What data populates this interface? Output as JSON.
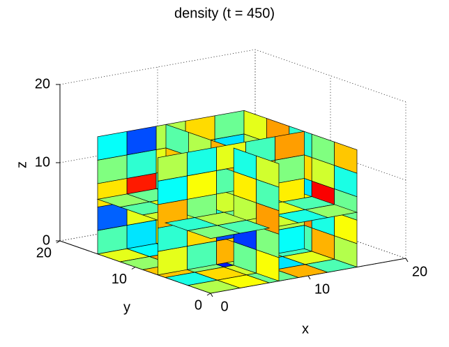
{
  "chart_data": {
    "type": "slice3d",
    "title": "density (t = 450)",
    "x_label": "x",
    "y_label": "y",
    "z_label": "z",
    "xlim": [
      0,
      20
    ],
    "ylim": [
      0,
      20
    ],
    "zlim": [
      0,
      20
    ],
    "xticks": [
      0,
      10,
      20
    ],
    "yticks": [
      0,
      10,
      20
    ],
    "zticks": [
      0,
      10,
      20
    ],
    "grid": true,
    "colormap": "jet",
    "clim": [
      0,
      1
    ],
    "slices": [
      {
        "axis": "z",
        "at": 0,
        "values": [
          [
            0.55,
            0.62,
            0.48,
            0.7,
            0.45
          ],
          [
            0.4,
            0.66,
            0.58,
            0.35,
            0.6
          ],
          [
            0.68,
            0.5,
            0.15,
            0.62,
            0.44
          ],
          [
            0.52,
            0.72,
            0.47,
            0.58,
            0.66
          ],
          [
            0.6,
            0.38,
            0.7,
            0.5,
            0.55
          ]
        ]
      },
      {
        "axis": "y",
        "at": 15,
        "values": [
          [
            0.45,
            0.35,
            0.62,
            0.55,
            0.4
          ],
          [
            0.22,
            0.6,
            0.5,
            0.68,
            0.58
          ],
          [
            0.65,
            0.85,
            0.45,
            0.38,
            0.7
          ],
          [
            0.5,
            0.42,
            0.6,
            0.55,
            0.35
          ],
          [
            0.38,
            0.2,
            0.55,
            0.66,
            0.48
          ]
        ]
      },
      {
        "axis": "x",
        "at": 15,
        "values": [
          [
            0.55,
            0.7,
            0.45,
            0.6,
            0.38
          ],
          [
            0.62,
            0.4,
            0.74,
            0.5,
            0.66
          ],
          [
            0.48,
            0.88,
            0.35,
            0.62,
            0.7
          ],
          [
            0.4,
            0.58,
            0.66,
            0.3,
            0.55
          ],
          [
            0.68,
            0.5,
            0.42,
            0.72,
            0.6
          ]
        ]
      },
      {
        "axis": "z",
        "at": 7,
        "values": [
          [
            0.5,
            0.45,
            0.58,
            0.4,
            0.52
          ],
          [
            0.42,
            0.55,
            0.48,
            0.6,
            0.45
          ],
          [
            0.58,
            0.4,
            0.5,
            0.46,
            0.62
          ],
          [
            0.46,
            0.6,
            0.44,
            0.56,
            0.4
          ],
          [
            0.52,
            0.48,
            0.62,
            0.42,
            0.5
          ]
        ]
      },
      {
        "axis": "y",
        "at": 7,
        "values": [
          [
            0.6,
            0.45,
            0.7,
            0.5,
            0.38
          ],
          [
            0.42,
            0.66,
            0.2,
            0.62,
            0.55
          ],
          [
            0.7,
            0.5,
            0.58,
            0.4,
            0.64
          ],
          [
            0.38,
            0.62,
            0.46,
            0.68,
            0.5
          ],
          [
            0.55,
            0.4,
            0.6,
            0.44,
            0.72
          ]
        ]
      },
      {
        "axis": "x",
        "at": 7,
        "values": [
          [
            0.62,
            0.48,
            0.55,
            0.7,
            0.44
          ],
          [
            0.5,
            0.18,
            0.66,
            0.4,
            0.6
          ],
          [
            0.72,
            0.56,
            0.42,
            0.9,
            0.5
          ],
          [
            0.45,
            0.64,
            0.52,
            0.38,
            0.68
          ],
          [
            0.58,
            0.4,
            0.7,
            0.55,
            0.46
          ]
        ]
      }
    ]
  }
}
